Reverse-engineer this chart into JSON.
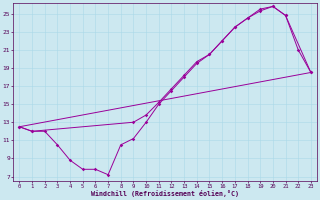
{
  "xlabel": "Windchill (Refroidissement éolien,°C)",
  "bg_color": "#cce8f0",
  "line_color": "#990099",
  "grid_color": "#aad8e8",
  "xlim": [
    -0.5,
    23.5
  ],
  "ylim": [
    6.5,
    26.2
  ],
  "xticks": [
    0,
    1,
    2,
    3,
    4,
    5,
    6,
    7,
    8,
    9,
    10,
    11,
    12,
    13,
    14,
    15,
    16,
    17,
    18,
    19,
    20,
    21,
    22,
    23
  ],
  "yticks": [
    7,
    9,
    11,
    13,
    15,
    17,
    19,
    21,
    23,
    25
  ],
  "line1_x": [
    0,
    1,
    2,
    3,
    4,
    5,
    6,
    7,
    8,
    9,
    10,
    11,
    12,
    13,
    14,
    15,
    16,
    17,
    18,
    19,
    20,
    21,
    22,
    23
  ],
  "line1_y": [
    12.5,
    12.0,
    12.0,
    10.5,
    8.8,
    7.8,
    7.8,
    7.2,
    10.5,
    11.2,
    13.0,
    15.0,
    16.5,
    18.0,
    19.5,
    20.5,
    22.0,
    23.5,
    24.5,
    25.5,
    25.8,
    24.8,
    21.0,
    18.5
  ],
  "line2_x": [
    0,
    1,
    9,
    10,
    11,
    12,
    13,
    14,
    15,
    16,
    17,
    18,
    19,
    20,
    21,
    23
  ],
  "line2_y": [
    12.5,
    12.0,
    13.0,
    13.8,
    15.2,
    16.7,
    18.2,
    19.7,
    20.5,
    22.0,
    23.5,
    24.5,
    25.3,
    25.8,
    24.8,
    18.5
  ],
  "line3_x": [
    0,
    23
  ],
  "line3_y": [
    12.5,
    18.5
  ]
}
